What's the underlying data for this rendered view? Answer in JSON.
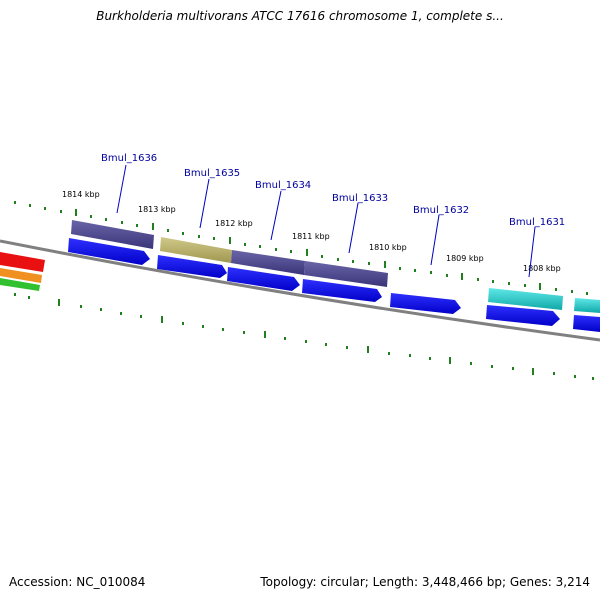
{
  "title": "Burkholderia multivorans ATCC 17616 chromosome 1, complete s...",
  "footer": {
    "accession": "Accession: NC_010084",
    "summary": "Topology: circular; Length: 3,448,466 bp; Genes: 3,214"
  },
  "kbp_labels": [
    "1814 kbp",
    "1813 kbp",
    "1812 kbp",
    "1811 kbp",
    "1810 kbp",
    "1809 kbp",
    "1808 kbp"
  ],
  "gene_labels": [
    "Bmul_1636",
    "Bmul_1635",
    "Bmul_1634",
    "Bmul_1633",
    "Bmul_1632",
    "Bmul_1631"
  ],
  "colors": {
    "gene_arrow": "#0000e0",
    "cog_purple": "#4a4488",
    "cog_olive": "#b8b070",
    "cog_cyan": "#20c8c8",
    "tick": "#208020",
    "backbone": "#808080",
    "label": "#0000a0"
  }
}
